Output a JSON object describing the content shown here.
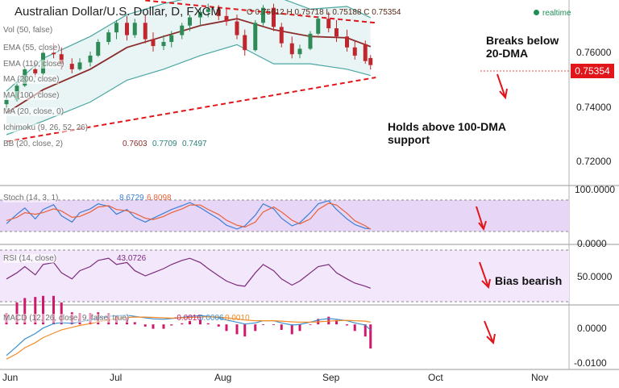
{
  "header": {
    "title": "Australian Dollar/U.S. Dollar, D, FXCM",
    "ohlc": "O 0.75612 H 0.75718 L 0.75188 C 0.75354",
    "realtime": "realtime"
  },
  "price": {
    "last": "0.75354",
    "indicators": [
      "Vol (50, false)",
      "EMA (55, close)",
      "EMA (110, close)",
      "MA (200, close)",
      "MA (100, close)",
      "MA (20, close, 0)",
      "Ichimoku (9, 26, 52, 26)",
      "BB (20, close, 2)"
    ],
    "bb_values": [
      "0.7603",
      "0.7709",
      "0.7497"
    ],
    "annotations": {
      "breaks": [
        "Breaks below",
        "20-DMA"
      ],
      "holds": [
        "Holds above 100-DMA",
        "support"
      ]
    },
    "yticks": [
      "0.76000",
      "0.74000",
      "0.72000"
    ]
  },
  "stoch": {
    "label": "Stoch (14, 3, 1)",
    "values": [
      "8.6729",
      "6.8098"
    ],
    "yticks": [
      "100.0000",
      "0.0000"
    ]
  },
  "rsi": {
    "label": "RSI (14, close)",
    "value": "43.0726",
    "yticks": [
      "50.0000"
    ],
    "annotation": "Bias bearish"
  },
  "macd": {
    "label": "MACD (12, 26, close, 9, false, true)",
    "values": [
      "-0.0016",
      "0.0006",
      "0.0010"
    ],
    "yticks": [
      "0.0000",
      "-0.0100"
    ]
  },
  "xaxis": {
    "labels": [
      "Jun",
      "Jul",
      "Aug",
      "Sep",
      "Oct",
      "Nov"
    ]
  },
  "colors": {
    "up_candle": "#2e8b57",
    "down_candle": "#c0262d",
    "dma20": "#8b2c2c",
    "bollinger": "#4aa7a1",
    "trendline": "#e0161a",
    "stoch_k": "#3b7fd6",
    "stoch_d": "#e8623a",
    "oscillator_band": "#e8d6f7",
    "rsi_line": "#7b2a7b",
    "macd_line": "#3d8fd1",
    "signal_line": "#f28c28",
    "histogram": "#d0196b",
    "last_price_tag": "#e0161a"
  },
  "chart_data": [
    {
      "type": "candlestick",
      "title": "Australian Dollar/U.S. Dollar, D, FXCM",
      "x_range": [
        "2017-06-01",
        "2017-10-31"
      ],
      "ylim": [
        0.71,
        0.775
      ],
      "last_close": 0.75354,
      "candles": [
        {
          "date": "2017-06-01",
          "o": 0.7392,
          "h": 0.7421,
          "l": 0.7372,
          "c": 0.7408
        },
        {
          "date": "2017-06-05",
          "o": 0.7408,
          "h": 0.7475,
          "l": 0.7402,
          "c": 0.746
        },
        {
          "date": "2017-06-08",
          "o": 0.746,
          "h": 0.753,
          "l": 0.7455,
          "c": 0.752
        },
        {
          "date": "2017-06-12",
          "o": 0.752,
          "h": 0.7545,
          "l": 0.749,
          "c": 0.7505
        },
        {
          "date": "2017-06-15",
          "o": 0.7505,
          "h": 0.759,
          "l": 0.75,
          "c": 0.758
        },
        {
          "date": "2017-06-19",
          "o": 0.758,
          "h": 0.7615,
          "l": 0.756,
          "c": 0.7575
        },
        {
          "date": "2017-06-22",
          "o": 0.7575,
          "h": 0.76,
          "l": 0.752,
          "c": 0.754
        },
        {
          "date": "2017-06-26",
          "o": 0.754,
          "h": 0.756,
          "l": 0.7505,
          "c": 0.752
        },
        {
          "date": "2017-06-29",
          "o": 0.752,
          "h": 0.756,
          "l": 0.7515,
          "c": 0.7545
        },
        {
          "date": "2017-07-03",
          "o": 0.7545,
          "h": 0.7585,
          "l": 0.753,
          "c": 0.757
        },
        {
          "date": "2017-07-06",
          "o": 0.757,
          "h": 0.763,
          "l": 0.7565,
          "c": 0.762
        },
        {
          "date": "2017-07-10",
          "o": 0.762,
          "h": 0.7665,
          "l": 0.761,
          "c": 0.7655
        },
        {
          "date": "2017-07-13",
          "o": 0.7655,
          "h": 0.77,
          "l": 0.763,
          "c": 0.769
        },
        {
          "date": "2017-07-17",
          "o": 0.769,
          "h": 0.7715,
          "l": 0.7625,
          "c": 0.7645
        },
        {
          "date": "2017-07-20",
          "o": 0.7645,
          "h": 0.7705,
          "l": 0.7635,
          "c": 0.769
        },
        {
          "date": "2017-07-24",
          "o": 0.769,
          "h": 0.772,
          "l": 0.7615,
          "c": 0.763
        },
        {
          "date": "2017-07-27",
          "o": 0.763,
          "h": 0.7655,
          "l": 0.7585,
          "c": 0.7605
        },
        {
          "date": "2017-07-31",
          "o": 0.7605,
          "h": 0.7645,
          "l": 0.759,
          "c": 0.762
        },
        {
          "date": "2017-08-03",
          "o": 0.762,
          "h": 0.766,
          "l": 0.76,
          "c": 0.7645
        },
        {
          "date": "2017-08-07",
          "o": 0.7645,
          "h": 0.769,
          "l": 0.763,
          "c": 0.768
        },
        {
          "date": "2017-08-10",
          "o": 0.768,
          "h": 0.772,
          "l": 0.766,
          "c": 0.771
        },
        {
          "date": "2017-08-14",
          "o": 0.771,
          "h": 0.7745,
          "l": 0.768,
          "c": 0.773
        },
        {
          "date": "2017-08-17",
          "o": 0.773,
          "h": 0.776,
          "l": 0.771,
          "c": 0.774
        },
        {
          "date": "2017-08-21",
          "o": 0.774,
          "h": 0.7755,
          "l": 0.77,
          "c": 0.7715
        },
        {
          "date": "2017-08-24",
          "o": 0.7715,
          "h": 0.774,
          "l": 0.768,
          "c": 0.7695
        },
        {
          "date": "2017-08-28",
          "o": 0.7695,
          "h": 0.772,
          "l": 0.763,
          "c": 0.7645
        },
        {
          "date": "2017-08-31",
          "o": 0.7645,
          "h": 0.7665,
          "l": 0.757,
          "c": 0.759
        },
        {
          "date": "2017-09-04",
          "o": 0.759,
          "h": 0.77,
          "l": 0.7585,
          "c": 0.769
        },
        {
          "date": "2017-09-07",
          "o": 0.769,
          "h": 0.7755,
          "l": 0.768,
          "c": 0.7745
        },
        {
          "date": "2017-09-11",
          "o": 0.7745,
          "h": 0.776,
          "l": 0.766,
          "c": 0.7675
        },
        {
          "date": "2017-09-14",
          "o": 0.7675,
          "h": 0.769,
          "l": 0.76,
          "c": 0.7615
        },
        {
          "date": "2017-09-18",
          "o": 0.7615,
          "h": 0.764,
          "l": 0.756,
          "c": 0.7575
        },
        {
          "date": "2017-09-21",
          "o": 0.7575,
          "h": 0.761,
          "l": 0.756,
          "c": 0.7595
        },
        {
          "date": "2017-09-25",
          "o": 0.7595,
          "h": 0.766,
          "l": 0.759,
          "c": 0.765
        },
        {
          "date": "2017-09-28",
          "o": 0.765,
          "h": 0.7715,
          "l": 0.7645,
          "c": 0.7705
        },
        {
          "date": "2017-10-02",
          "o": 0.7705,
          "h": 0.773,
          "l": 0.7655,
          "c": 0.767
        },
        {
          "date": "2017-10-05",
          "o": 0.767,
          "h": 0.77,
          "l": 0.762,
          "c": 0.764
        },
        {
          "date": "2017-10-09",
          "o": 0.764,
          "h": 0.7665,
          "l": 0.7585,
          "c": 0.76
        },
        {
          "date": "2017-10-12",
          "o": 0.76,
          "h": 0.7625,
          "l": 0.7555,
          "c": 0.757
        },
        {
          "date": "2017-10-16",
          "o": 0.7612,
          "h": 0.7625,
          "l": 0.754,
          "c": 0.755
        },
        {
          "date": "2017-10-18",
          "o": 0.75612,
          "h": 0.75718,
          "l": 0.75188,
          "c": 0.75354
        }
      ],
      "sma20": [
        {
          "date": "2017-06-01",
          "v": 0.736
        },
        {
          "date": "2017-06-15",
          "v": 0.7445
        },
        {
          "date": "2017-07-03",
          "v": 0.752
        },
        {
          "date": "2017-07-17",
          "v": 0.76
        },
        {
          "date": "2017-07-31",
          "v": 0.764
        },
        {
          "date": "2017-08-14",
          "v": 0.768
        },
        {
          "date": "2017-08-28",
          "v": 0.7705
        },
        {
          "date": "2017-09-11",
          "v": 0.7665
        },
        {
          "date": "2017-09-25",
          "v": 0.764
        },
        {
          "date": "2017-10-09",
          "v": 0.7635
        },
        {
          "date": "2017-10-18",
          "v": 0.7603
        }
      ],
      "bollinger_upper": [
        {
          "date": "2017-06-01",
          "v": 0.744
        },
        {
          "date": "2017-06-15",
          "v": 0.756
        },
        {
          "date": "2017-07-03",
          "v": 0.764
        },
        {
          "date": "2017-07-17",
          "v": 0.772
        },
        {
          "date": "2017-07-31",
          "v": 0.776
        },
        {
          "date": "2017-08-14",
          "v": 0.779
        },
        {
          "date": "2017-08-28",
          "v": 0.78
        },
        {
          "date": "2017-09-11",
          "v": 0.779
        },
        {
          "date": "2017-09-25",
          "v": 0.774
        },
        {
          "date": "2017-10-09",
          "v": 0.775
        },
        {
          "date": "2017-10-18",
          "v": 0.7709
        }
      ],
      "bollinger_lower": [
        {
          "date": "2017-06-01",
          "v": 0.728
        },
        {
          "date": "2017-06-15",
          "v": 0.733
        },
        {
          "date": "2017-07-03",
          "v": 0.74
        },
        {
          "date": "2017-07-17",
          "v": 0.748
        },
        {
          "date": "2017-07-31",
          "v": 0.752
        },
        {
          "date": "2017-08-14",
          "v": 0.757
        },
        {
          "date": "2017-08-28",
          "v": 0.761
        },
        {
          "date": "2017-09-11",
          "v": 0.754
        },
        {
          "date": "2017-09-25",
          "v": 0.754
        },
        {
          "date": "2017-10-09",
          "v": 0.752
        },
        {
          "date": "2017-10-18",
          "v": 0.7497
        }
      ],
      "trendlines": [
        {
          "name": "resistance",
          "from": {
            "date": "2017-07-24",
            "v": 0.7772
          },
          "to": {
            "date": "2017-10-20",
            "v": 0.769
          }
        },
        {
          "name": "support",
          "from": {
            "date": "2017-06-01",
            "v": 0.7255
          },
          "to": {
            "date": "2017-10-20",
            "v": 0.749
          }
        }
      ]
    },
    {
      "type": "line",
      "title": "Stoch (14, 3, 1)",
      "ylim": [
        0,
        100
      ],
      "series": [
        {
          "name": "%K",
          "values": [
            25,
            55,
            75,
            40,
            70,
            85,
            50,
            30,
            60,
            72,
            88,
            80,
            55,
            70,
            45,
            30,
            42,
            58,
            70,
            82,
            92,
            76,
            60,
            40,
            20,
            8,
            18,
            52,
            88,
            72,
            42,
            18,
            28,
            60,
            88,
            98,
            70,
            40,
            22,
            10,
            8.6729
          ]
        },
        {
          "name": "%D",
          "values": [
            35,
            45,
            60,
            55,
            60,
            72,
            65,
            45,
            48,
            62,
            78,
            82,
            70,
            66,
            58,
            42,
            38,
            48,
            60,
            72,
            84,
            84,
            70,
            54,
            36,
            20,
            14,
            30,
            62,
            78,
            62,
            36,
            24,
            40,
            70,
            90,
            84,
            58,
            34,
            18,
            6.8098
          ]
        }
      ]
    },
    {
      "type": "line",
      "title": "RSI (14, close)",
      "ylim": [
        0,
        100
      ],
      "series": [
        {
          "name": "RSI",
          "values": [
            52,
            58,
            64,
            56,
            66,
            68,
            58,
            52,
            60,
            64,
            70,
            72,
            66,
            68,
            60,
            55,
            58,
            62,
            66,
            70,
            72,
            68,
            62,
            55,
            50,
            46,
            45,
            58,
            66,
            60,
            52,
            46,
            50,
            58,
            64,
            66,
            58,
            52,
            48,
            45,
            43.0726
          ]
        }
      ]
    },
    {
      "type": "line",
      "title": "MACD (12, 26, close, 9, false, true)",
      "ylim": [
        -0.011,
        0.004
      ],
      "series": [
        {
          "name": "MACD",
          "values": [
            -0.0085,
            -0.006,
            -0.004,
            -0.0025,
            -0.001,
            0.0002,
            0.0005,
            0.0003,
            0.0007,
            0.0012,
            0.0018,
            0.0022,
            0.0024,
            0.0025,
            0.0022,
            0.0018,
            0.0015,
            0.0014,
            0.0016,
            0.0019,
            0.0022,
            0.0024,
            0.0022,
            0.0018,
            0.0012,
            0.0006,
            0.0001,
            0.0004,
            0.001,
            0.001,
            0.0004,
            -0.0002,
            0.0,
            0.0006,
            0.0012,
            0.0016,
            0.0014,
            0.001,
            0.0004,
            -0.0002,
            -0.0016
          ]
        },
        {
          "name": "Signal",
          "values": [
            -0.0095,
            -0.008,
            -0.0064,
            -0.005,
            -0.0036,
            -0.0024,
            -0.0015,
            -0.0008,
            -0.0003,
            0.0002,
            0.0007,
            0.0012,
            0.0016,
            0.0019,
            0.002,
            0.002,
            0.0019,
            0.0018,
            0.0017,
            0.0018,
            0.0019,
            0.002,
            0.0021,
            0.002,
            0.0018,
            0.0015,
            0.0012,
            0.001,
            0.001,
            0.001,
            0.0009,
            0.0007,
            0.0006,
            0.0006,
            0.0007,
            0.0009,
            0.001,
            0.0011,
            0.001,
            0.0009,
            0.0006
          ]
        }
      ]
    }
  ]
}
